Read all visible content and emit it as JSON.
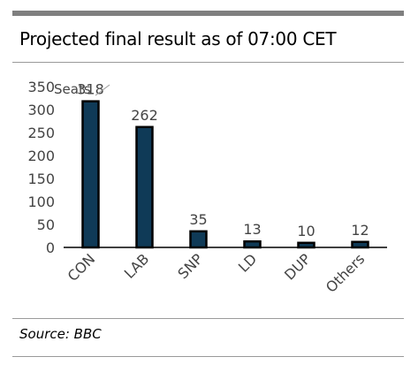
{
  "title": "Projected final result as of 07:00 CET",
  "source": "Source: BBC",
  "chart_data": {
    "type": "bar",
    "categories": [
      "CON",
      "LAB",
      "SNP",
      "LD",
      "DUP",
      "Others"
    ],
    "values": [
      318,
      262,
      35,
      13,
      10,
      12
    ],
    "data_labels": [
      "318",
      "262",
      "35",
      "13",
      "10",
      "12"
    ],
    "ylabel": "Seats",
    "ylim": [
      0,
      350
    ],
    "yticks": [
      0,
      50,
      100,
      150,
      200,
      250,
      300,
      350
    ],
    "ytick_labels": [
      "0",
      "50",
      "100",
      "150",
      "200",
      "250",
      "300",
      "350"
    ],
    "grid": false,
    "legend": "none",
    "bar_color": "#0f3a57",
    "bar_outline": "#000000"
  }
}
